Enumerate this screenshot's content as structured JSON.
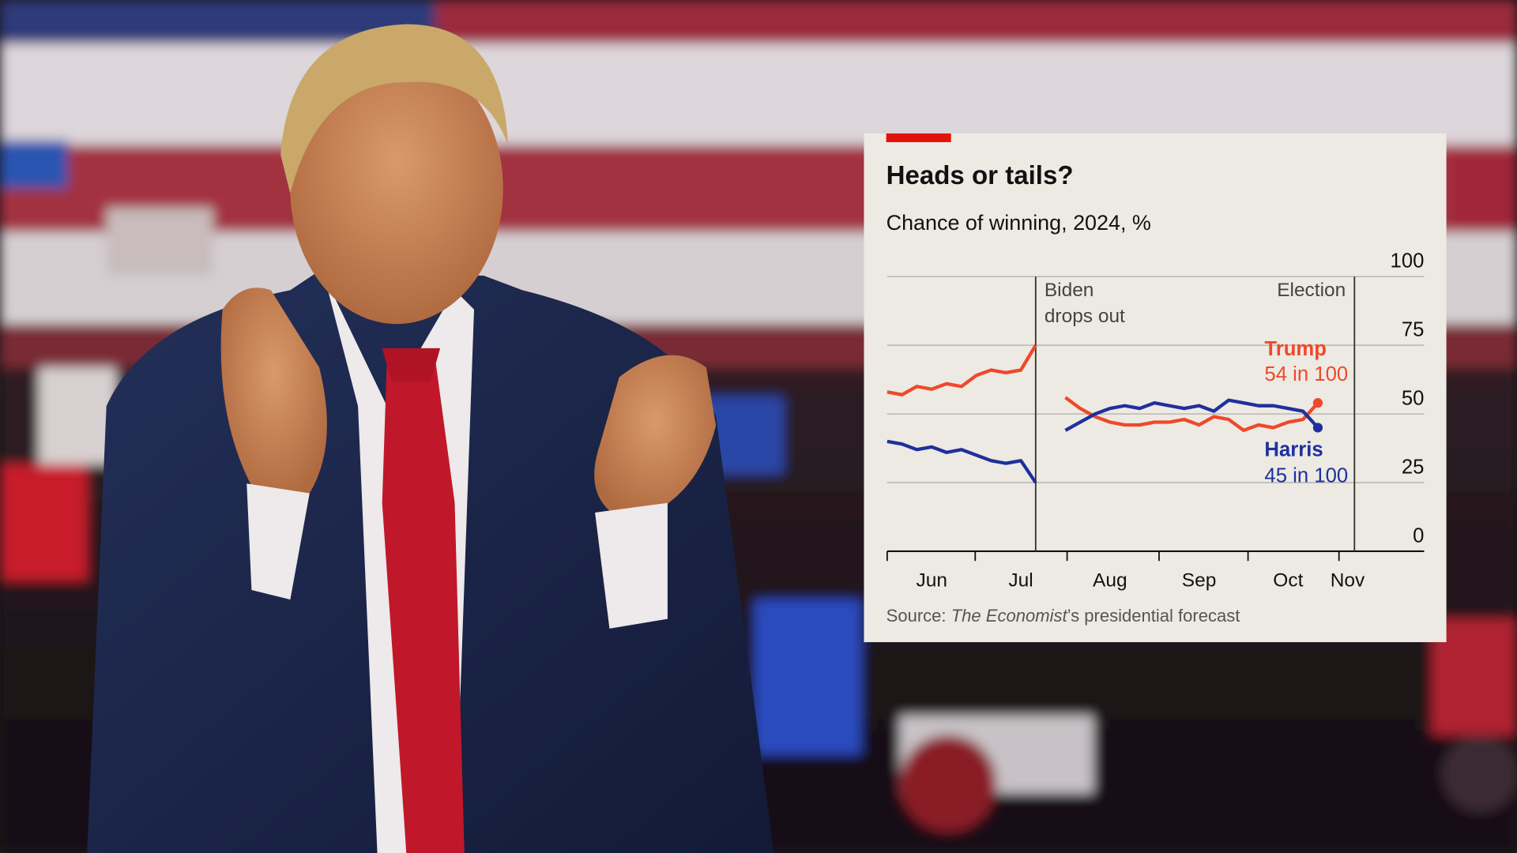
{
  "chart_data": {
    "type": "line",
    "title": "Heads or tails?",
    "subtitle": "Chance of winning, 2024, %",
    "source": {
      "prefix": "Source: ",
      "publication": "The Economist",
      "suffix": "’s presidential forecast"
    },
    "categories": [
      null,
      null,
      null,
      "Jun",
      null,
      null,
      null,
      null,
      null,
      "Jul",
      null,
      null,
      null,
      null,
      null,
      "Aug",
      null,
      null,
      null,
      null,
      null,
      "Sep",
      null,
      null,
      null,
      null,
      null,
      "Oct",
      null,
      null,
      null,
      "Nov"
    ],
    "series": [
      {
        "name": "Trump",
        "color": "#f0482b",
        "end_label": "54 in 100",
        "values": [
          58,
          57,
          60,
          59,
          61,
          60,
          64,
          66,
          65,
          66,
          75,
          null,
          56,
          52,
          49,
          47,
          46,
          46,
          47,
          47,
          48,
          46,
          49,
          48,
          44,
          46,
          45,
          47,
          48,
          54,
          null,
          null
        ]
      },
      {
        "name": "Harris",
        "color": "#1f2f9c",
        "end_label": "45 in 100",
        "values": [
          40,
          39,
          37,
          38,
          36,
          37,
          35,
          33,
          32,
          33,
          25,
          null,
          44,
          47,
          50,
          52,
          53,
          52,
          54,
          53,
          52,
          53,
          51,
          55,
          54,
          53,
          53,
          52,
          51,
          45,
          null,
          null
        ]
      }
    ],
    "annotations": [
      {
        "lines": [
          "Biden",
          "drops out"
        ]
      },
      {
        "lines": [
          "Election"
        ]
      }
    ],
    "ylim": [
      0,
      100
    ],
    "yticks": [
      0,
      25,
      50,
      75,
      100
    ],
    "grid": true
  }
}
